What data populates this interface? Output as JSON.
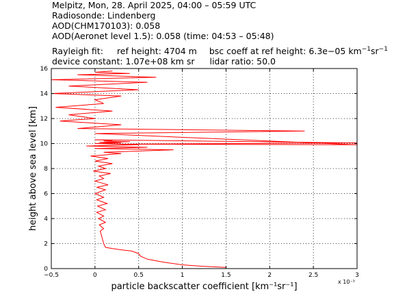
{
  "header": {
    "line1": "Melpitz, Mon, 28. April 2025, 04:00 – 05:59 UTC",
    "line2": "Radiosonde: Lindenberg",
    "line3": "AOD(CHM170103): 0.058",
    "line4": "AOD(Aeronet level 1.5): 0.058   (time: 04:53 – 05:48)",
    "rayleigh_label": "Rayleigh fit:",
    "ref_height": "ref height: 4704 m",
    "bsc_coeff_prefix": "bsc coeff at ref height: 6.3e−05 km",
    "bsc_coeff_mid": "sr",
    "device_constant": "device constant: 1.07e+08 km sr",
    "lidar_ratio": "lidar ratio: 50.0"
  },
  "chart_data": {
    "type": "line",
    "xlabel": "particle backscatter coefficient [km⁻¹sr⁻¹]",
    "ylabel": "height above sea level [km]",
    "x_multiplier": "x 10⁻³",
    "xlim": [
      -0.5,
      3
    ],
    "ylim": [
      0,
      16
    ],
    "xticks": [
      "−0.5",
      "0",
      "0.5",
      "1",
      "1.5",
      "2",
      "2.5",
      "3"
    ],
    "yticks": [
      "0",
      "2",
      "4",
      "6",
      "8",
      "10",
      "12",
      "14",
      "16"
    ],
    "grid": true,
    "line_color": "#ff0000",
    "series": [
      {
        "x": [
          1.5,
          1.2,
          1.0,
          0.8,
          0.72,
          0.6,
          0.52,
          0.5,
          0.42,
          0.3,
          0.2,
          0.12,
          0.1,
          0.08,
          0.06,
          0.1,
          0.05,
          0.12,
          0.04,
          0.1,
          0.02,
          0.12,
          0.03,
          0.14,
          0.02,
          0.1,
          0.0,
          0.12,
          0.02,
          0.15,
          0.0,
          0.1,
          0.05,
          0.18,
          -0.02,
          0.12,
          0.04,
          0.2,
          0.0,
          0.15,
          -0.05,
          0.3,
          0.1,
          0.9,
          0.0,
          0.6,
          -0.1,
          0.5,
          0.0,
          0.3,
          0.05,
          0.4,
          0.1,
          0.2,
          0.0,
          3.0,
          0.3,
          3.0,
          0.0,
          2.4,
          -0.2,
          0.3,
          -0.4,
          0.0,
          -0.3,
          0.2,
          -0.45,
          0.1,
          0.0,
          0.3,
          -0.5,
          0.5,
          -0.3,
          0.6,
          -0.5,
          0.7,
          -0.2,
          0.4,
          0.0,
          0.2
        ],
        "y": [
          0.1,
          0.2,
          0.3,
          0.5,
          0.6,
          0.75,
          1.0,
          1.2,
          1.4,
          1.5,
          1.6,
          1.7,
          2.0,
          2.5,
          3.0,
          3.2,
          3.5,
          3.7,
          4.0,
          4.2,
          4.5,
          4.7,
          5.0,
          5.2,
          5.5,
          5.7,
          6.0,
          6.3,
          6.5,
          6.7,
          7.0,
          7.2,
          7.4,
          7.6,
          7.8,
          8.0,
          8.2,
          8.4,
          8.6,
          8.8,
          9.0,
          9.2,
          9.3,
          9.5,
          9.6,
          9.7,
          9.8,
          9.9,
          10.0,
          10.05,
          10.1,
          10.15,
          10.2,
          10.25,
          10.3,
          10.05,
          9.95,
          9.9,
          10.8,
          11.0,
          11.2,
          11.5,
          11.8,
          12.0,
          12.3,
          12.6,
          12.9,
          13.2,
          13.5,
          13.8,
          14.0,
          14.3,
          14.6,
          14.9,
          15.1,
          15.3,
          15.5,
          15.6,
          15.7,
          15.8
        ]
      }
    ]
  }
}
